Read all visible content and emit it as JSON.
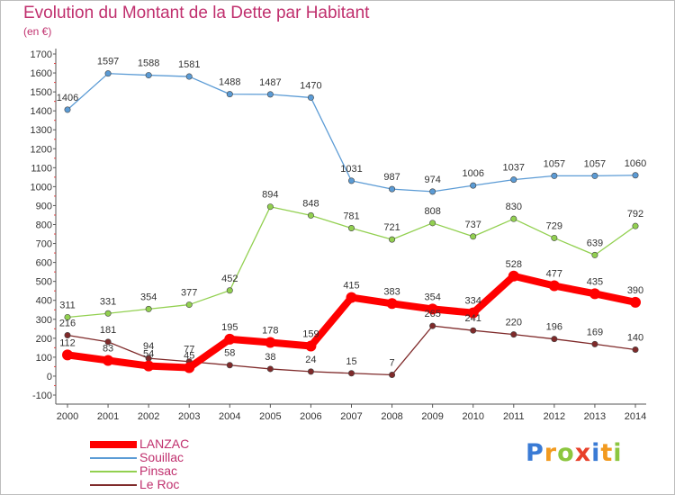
{
  "chart_data": {
    "type": "line",
    "title": "Evolution du Montant de la Dette par Habitant",
    "subtitle": "(en €)",
    "xlabel": "",
    "ylabel": "",
    "ylim": [
      -100,
      1700
    ],
    "ytick_step": 100,
    "grid": false,
    "legend_position": "bottom-left",
    "x": [
      "2000",
      "2001",
      "2002",
      "2003",
      "2004",
      "2005",
      "2006",
      "2007",
      "2008",
      "2009",
      "2010",
      "2011",
      "2012",
      "2013",
      "2014"
    ],
    "series": [
      {
        "name": "LANZAC",
        "color": "#ff0000",
        "emphasis": true,
        "values": [
          112,
          83,
          54,
          45,
          195,
          178,
          159,
          415,
          383,
          354,
          334,
          528,
          477,
          435,
          390
        ]
      },
      {
        "name": "Souillac",
        "color": "#5b9bd5",
        "emphasis": false,
        "values": [
          1406,
          1597,
          1588,
          1581,
          1488,
          1487,
          1470,
          1031,
          987,
          974,
          1006,
          1037,
          1057,
          1057,
          1060
        ]
      },
      {
        "name": "Pinsac",
        "color": "#92d050",
        "emphasis": false,
        "values": [
          311,
          331,
          354,
          377,
          452,
          894,
          848,
          781,
          721,
          808,
          737,
          830,
          729,
          639,
          792
        ]
      },
      {
        "name": "Le Roc",
        "color": "#7f2a2a",
        "emphasis": false,
        "values": [
          216,
          181,
          94,
          77,
          58,
          38,
          24,
          15,
          7,
          265,
          241,
          220,
          196,
          169,
          140
        ]
      }
    ]
  },
  "brand": {
    "name": "Proxiti",
    "letter_colors": [
      "#3a7bd5",
      "#f29a1f",
      "#8cc63f",
      "#e8402a",
      "#3a7bd5",
      "#f29a1f",
      "#8cc63f"
    ]
  }
}
